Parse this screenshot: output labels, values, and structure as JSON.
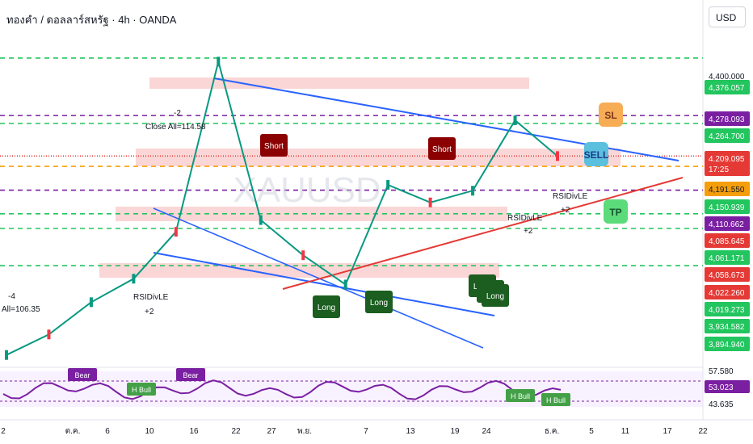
{
  "header": {
    "title": "ทองคำ / ดอลลาร์สหรัฐ · 4h · OANDA",
    "currency": "USD"
  },
  "watermark": "XAUUSD",
  "price_axis": {
    "top_partial": "4,400.000",
    "labels": [
      {
        "text": "4,400.000",
        "color": "#ffffff",
        "text_color": "#131722"
      },
      {
        "text": "4,376.057",
        "color": "#22c55e",
        "text_color": "#ffffff"
      },
      {
        "text": "4,278.093",
        "color": "#7b1fa2",
        "text_color": "#ffffff"
      },
      {
        "text": "4,264.700",
        "color": "#22c55e",
        "text_color": "#ffffff"
      },
      {
        "text": "4,209.095",
        "color": "#e53935",
        "text_color": "#ffffff"
      },
      {
        "text": "17:25",
        "color": "#e53935",
        "text_color": "#ffffff"
      },
      {
        "text": "4,191.550",
        "color": "#f59e0b",
        "text_color": "#131722"
      },
      {
        "text": "4,150.939",
        "color": "#22c55e",
        "text_color": "#ffffff"
      },
      {
        "text": "4,110.662",
        "color": "#7b1fa2",
        "text_color": "#ffffff"
      },
      {
        "text": "4,085.645",
        "color": "#e53935",
        "text_color": "#ffffff"
      },
      {
        "text": "4,061.171",
        "color": "#22c55e",
        "text_color": "#ffffff"
      },
      {
        "text": "4,058.673",
        "color": "#e53935",
        "text_color": "#ffffff"
      },
      {
        "text": "4,022.260",
        "color": "#e53935",
        "text_color": "#ffffff"
      },
      {
        "text": "4,019.273",
        "color": "#22c55e",
        "text_color": "#ffffff"
      },
      {
        "text": "3,934.582",
        "color": "#22c55e",
        "text_color": "#ffffff"
      },
      {
        "text": "3,894.940",
        "color": "#22c55e",
        "text_color": "#ffffff"
      }
    ],
    "rsi_labels": [
      {
        "text": "57.580",
        "color": "#ffffff",
        "text_color": "#131722"
      },
      {
        "text": "53.023",
        "color": "#7b1fa2",
        "text_color": "#ffffff"
      },
      {
        "text": "43.635",
        "color": "#ffffff",
        "text_color": "#131722"
      }
    ]
  },
  "x_axis": {
    "labels": [
      "2",
      "ต.ค.",
      "6",
      "10",
      "16",
      "22",
      "27",
      "พ.ย.",
      "7",
      "13",
      "19",
      "24",
      "ธ.ค.",
      "5",
      "11",
      "17",
      "22"
    ]
  },
  "annotations": {
    "texts": [
      "-2",
      "Close All=114.58",
      "-4",
      "All=106.35",
      "RSIDivLE",
      "+2",
      "RSIDivLE",
      "+2",
      "RSIDivLE",
      "+2",
      "~RSIDivLE"
    ],
    "badges": [
      "Short",
      "Short",
      "Long",
      "Long",
      "Long",
      "Long",
      "Long"
    ],
    "tags": [
      "SL",
      "SELL",
      "TP"
    ],
    "rsi_tags": [
      "Bear",
      "Bear",
      "H Bull",
      "H Bull",
      "H Bull"
    ]
  },
  "chart_data": {
    "type": "line",
    "title": "ทองคำ / ดอลลาร์สหรัฐ · 4h · OANDA",
    "symbol": "XAUUSD",
    "timeframe": "4h",
    "last_price": 4209.095,
    "countdown": "17:25",
    "ylim": [
      3860,
      4420
    ],
    "x": [
      "2",
      "ต.ค.",
      "6",
      "10",
      "16",
      "22",
      "27",
      "พ.ย.",
      "7",
      "13",
      "19",
      "24",
      "ธ.ค.",
      "5"
    ],
    "series": [
      {
        "values": [
          3870,
          3905,
          3960,
          4000,
          4080,
          4370,
          4100,
          4040,
          3990,
          4160,
          4130,
          4150,
          4270,
          4209
        ]
      }
    ],
    "levels": [
      4376.057,
      4278.093,
      4264.7,
      4209.095,
      4191.55,
      4150.939,
      4110.662,
      4085.645,
      4061.171,
      4058.673,
      4022.26,
      4019.273,
      3934.582,
      3894.94
    ],
    "rsi": {
      "value": 53.023,
      "upper": 57.58,
      "lower": 43.635
    }
  }
}
